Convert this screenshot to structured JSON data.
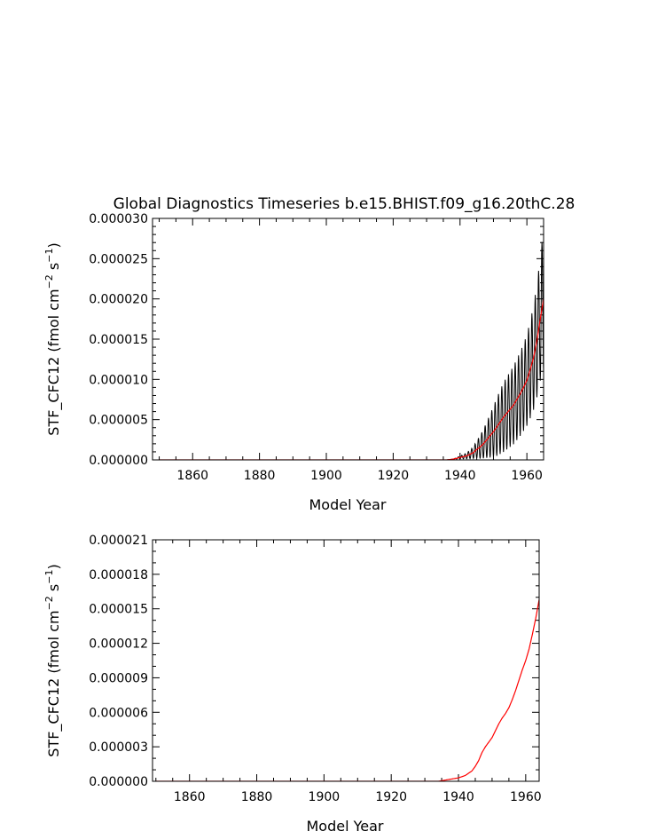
{
  "chart_data": [
    {
      "type": "line",
      "title": "Global Diagnostics Timeseries b.e15.BHIST.f09_g16.20thC.28",
      "xlabel": "Model Year",
      "ylabel": "STF_CFC12 (fmol cm",
      "ylabel_unit_exp1": "−2",
      "ylabel_unit_mid": " s",
      "ylabel_unit_exp2": "−1",
      "ylabel_close": ")",
      "xlim": [
        1848,
        1965
      ],
      "ylim": [
        0,
        3e-05
      ],
      "xticks": [
        1860,
        1880,
        1900,
        1920,
        1940,
        1960
      ],
      "xtick_labels": [
        "1860",
        "1880",
        "1900",
        "1920",
        "1940",
        "1960"
      ],
      "yticks": [
        0,
        5e-06,
        1e-05,
        1.5e-05,
        2e-05,
        2.5e-05,
        3e-05
      ],
      "ytick_labels": [
        "0.000000",
        "0.000005",
        "0.000010",
        "0.000015",
        "0.000020",
        "0.000025",
        "0.000030"
      ],
      "colors": {
        "monthly": "#000000",
        "annual": "#ff0000"
      },
      "series": [
        {
          "key": "monthly",
          "x": [
            1850,
            1936,
            1938,
            1940,
            1942,
            1944,
            1945,
            1946,
            1947,
            1948,
            1949,
            1950,
            1951,
            1952,
            1953,
            1954,
            1955,
            1956,
            1957,
            1958,
            1959,
            1960,
            1961,
            1962,
            1963,
            1964,
            1965
          ],
          "values": [
            0,
            0,
            1e-07,
            3e-07,
            5e-07,
            9e-07,
            1.3e-06,
            1.6e-06,
            2e-06,
            2.5e-06,
            3e-06,
            3.5e-06,
            4.1e-06,
            4.7e-06,
            5.3e-06,
            5.8e-06,
            6.3e-06,
            6.8e-06,
            7.5e-06,
            8.2e-06,
            9e-06,
            9.9e-06,
            1.12e-05,
            1.27e-05,
            1.48e-05,
            1.75e-05,
            2e-05
          ],
          "amplitude": [
            0,
            0,
            0,
            2e-07,
            4e-07,
            8e-07,
            1.2e-06,
            1.6e-06,
            2e-06,
            2.5e-06,
            3e-06,
            3.5e-06,
            4e-06,
            4.4e-06,
            4.8e-06,
            5e-06,
            5.2e-06,
            5.4e-06,
            5.6e-06,
            5.8e-06,
            6e-06,
            6.3e-06,
            6.7e-06,
            7.2e-06,
            7.8e-06,
            8.5e-06,
            1e-05
          ]
        },
        {
          "key": "annual",
          "x": [
            1850,
            1936,
            1938,
            1940,
            1942,
            1944,
            1945,
            1946,
            1947,
            1948,
            1949,
            1950,
            1951,
            1952,
            1953,
            1954,
            1955,
            1956,
            1957,
            1958,
            1959,
            1960,
            1961,
            1962,
            1963,
            1964,
            1965
          ],
          "values": [
            0,
            0,
            1e-07,
            3e-07,
            5e-07,
            9e-07,
            1.3e-06,
            1.6e-06,
            2e-06,
            2.5e-06,
            3e-06,
            3.5e-06,
            4.1e-06,
            4.7e-06,
            5.3e-06,
            5.8e-06,
            6.3e-06,
            6.8e-06,
            7.5e-06,
            8.2e-06,
            9e-06,
            9.9e-06,
            1.12e-05,
            1.27e-05,
            1.48e-05,
            1.75e-05,
            2e-05
          ]
        }
      ]
    },
    {
      "type": "line",
      "xlabel": "Model Year",
      "ylabel": "STF_CFC12 (fmol cm",
      "ylabel_unit_exp1": "−2",
      "ylabel_unit_mid": " s",
      "ylabel_unit_exp2": "−1",
      "ylabel_close": ")",
      "xlim": [
        1849,
        1964
      ],
      "ylim": [
        0,
        2.1e-05
      ],
      "xticks": [
        1860,
        1880,
        1900,
        1920,
        1940,
        1960
      ],
      "xtick_labels": [
        "1860",
        "1880",
        "1900",
        "1920",
        "1940",
        "1960"
      ],
      "yticks": [
        0,
        3e-06,
        6e-06,
        9e-06,
        1.2e-05,
        1.5e-05,
        1.8e-05,
        2.1e-05
      ],
      "ytick_labels": [
        "0.000000",
        "0.000003",
        "0.000006",
        "0.000009",
        "0.000012",
        "0.000015",
        "0.000018",
        "0.000021"
      ],
      "colors": {
        "annual": "#ff0000"
      },
      "series": [
        {
          "key": "annual",
          "x": [
            1850,
            1934,
            1936,
            1938,
            1940,
            1942,
            1944,
            1945,
            1946,
            1947,
            1948,
            1949,
            1950,
            1951,
            1952,
            1953,
            1954,
            1955,
            1956,
            1957,
            1958,
            1959,
            1960,
            1961,
            1962,
            1963,
            1964
          ],
          "values": [
            0,
            0,
            1e-07,
            2e-07,
            3e-07,
            5e-07,
            9e-07,
            1.3e-06,
            1.8e-06,
            2.5e-06,
            3e-06,
            3.4e-06,
            3.8e-06,
            4.4e-06,
            5e-06,
            5.5e-06,
            5.9e-06,
            6.4e-06,
            7.1e-06,
            7.9e-06,
            8.8e-06,
            9.7e-06,
            1.05e-05,
            1.15e-05,
            1.28e-05,
            1.42e-05,
            1.58e-05
          ]
        }
      ]
    }
  ]
}
